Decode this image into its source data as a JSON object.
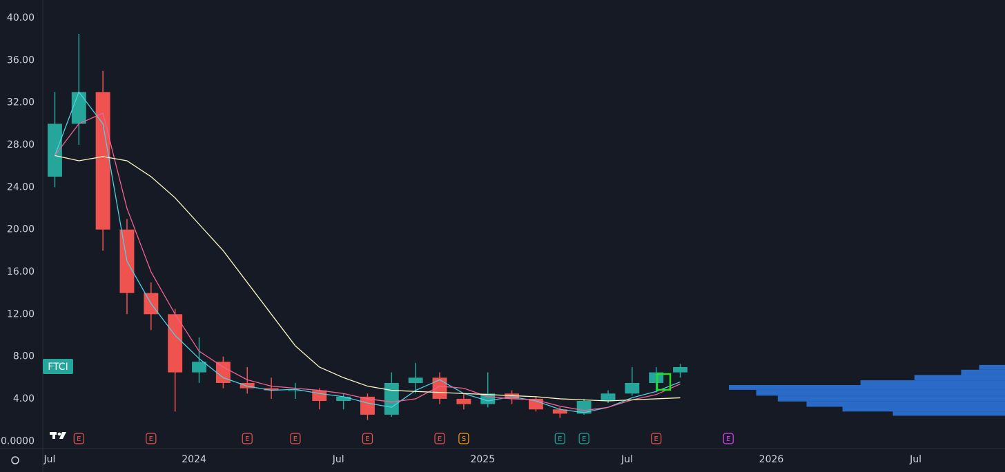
{
  "chart_data": {
    "type": "candlestick",
    "symbol": "FTCI",
    "x": [
      "2023-07",
      "2023-08",
      "2023-09",
      "2023-10",
      "2023-11",
      "2023-12",
      "2024-01",
      "2024-02",
      "2024-03",
      "2024-04",
      "2024-05",
      "2024-06",
      "2024-07",
      "2024-08",
      "2024-09",
      "2024-10",
      "2024-11",
      "2024-12",
      "2025-01",
      "2025-02",
      "2025-03",
      "2025-04",
      "2025-05",
      "2025-06",
      "2025-07",
      "2025-08",
      "2025-09"
    ],
    "open": [
      25,
      30,
      33,
      20,
      14,
      12,
      6.5,
      7.5,
      5.5,
      5,
      4.8,
      4.8,
      3.8,
      4.2,
      2.5,
      5.5,
      6,
      4,
      3.5,
      4.5,
      4,
      3,
      2.6,
      3.8,
      4.5,
      5.5,
      6.5
    ],
    "high": [
      33,
      38.5,
      35,
      21,
      15,
      12.5,
      9.8,
      8,
      7,
      6,
      5.5,
      5,
      4.5,
      4.5,
      6.5,
      7.4,
      6.5,
      4.5,
      6.5,
      4.8,
      4.2,
      3.2,
      4,
      4.8,
      7,
      7,
      7.3
    ],
    "low": [
      24,
      28,
      18,
      12,
      10.5,
      2.8,
      5.5,
      5,
      4.5,
      4,
      4,
      3,
      3,
      2,
      2.3,
      4.5,
      3.5,
      3,
      3.2,
      3.5,
      2.8,
      2.2,
      2.5,
      3.6,
      4.3,
      4.6,
      6
    ],
    "close": [
      30,
      33,
      20,
      14,
      12,
      6.5,
      7.5,
      5.5,
      5,
      4.8,
      4.8,
      3.8,
      4.2,
      2.5,
      5.5,
      6,
      4,
      3.5,
      4.5,
      4,
      3,
      2.6,
      3.8,
      4.5,
      5.5,
      6.5,
      7
    ],
    "up_color": "#26a69a",
    "down_color": "#ef5350",
    "series": [
      {
        "color": "#4dd0e1",
        "values": [
          27,
          33,
          30,
          17,
          13,
          10,
          7.8,
          6,
          5.2,
          4.8,
          4.9,
          4.5,
          4.2,
          3.6,
          3.2,
          4.8,
          5.8,
          4.5,
          3.8,
          4.2,
          3.8,
          3,
          2.7,
          3.2,
          4.1,
          4.7,
          5.6
        ]
      },
      {
        "color": "#f06292",
        "values": [
          27,
          30,
          31,
          22,
          16,
          12,
          8.5,
          7,
          5.8,
          5.2,
          5,
          4.8,
          4.5,
          4,
          3.7,
          4,
          5.2,
          5,
          4.2,
          4,
          3.9,
          3.3,
          2.9,
          3.2,
          3.9,
          4.4,
          5.4
        ]
      },
      {
        "color": "#fff9c4",
        "values": [
          27,
          26.5,
          26.9,
          26.5,
          25,
          23,
          20.5,
          18,
          15,
          12,
          9,
          7,
          6,
          5.2,
          4.8,
          4.7,
          4.6,
          4.5,
          4.4,
          4.3,
          4.2,
          4,
          3.9,
          3.8,
          3.9,
          4,
          4.1
        ]
      }
    ],
    "volume_profile": {
      "color": "#2f7ae5",
      "levels": [
        2.6,
        3.0,
        3.5,
        4.0,
        4.6,
        5.1,
        5.5,
        6.0,
        6.5,
        7.0
      ],
      "values": [
        156,
        226,
        276,
        316,
        346,
        384,
        201,
        126,
        61,
        36
      ]
    },
    "events": [
      {
        "x": "2023-08",
        "label": "E",
        "color": "#ef5350"
      },
      {
        "x": "2023-11",
        "label": "E",
        "color": "#ef5350"
      },
      {
        "x": "2024-03",
        "label": "E",
        "color": "#ef5350"
      },
      {
        "x": "2024-05",
        "label": "E",
        "color": "#ef5350"
      },
      {
        "x": "2024-08",
        "label": "E",
        "color": "#ef5350"
      },
      {
        "x": "2024-11",
        "label": "E",
        "color": "#ef5350"
      },
      {
        "x": "2024-12",
        "label": "S",
        "color": "#ff9800"
      },
      {
        "x": "2025-04",
        "label": "E",
        "color": "#26a69a"
      },
      {
        "x": "2025-05",
        "label": "E",
        "color": "#26a69a"
      },
      {
        "x": "2025-08",
        "label": "E",
        "color": "#ef5350"
      },
      {
        "x": "2025-11",
        "label": "E",
        "color": "#e040fb"
      }
    ],
    "xlim": [
      "2023-07",
      "2026-11"
    ],
    "xticks": [
      {
        "value": "2023-07",
        "label": "Jul"
      },
      {
        "value": "2024-01",
        "label": "2024"
      },
      {
        "value": "2024-07",
        "label": "Jul"
      },
      {
        "value": "2025-01",
        "label": "2025"
      },
      {
        "value": "2025-07",
        "label": "Jul"
      },
      {
        "value": "2026-01",
        "label": "2026"
      },
      {
        "value": "2026-07",
        "label": "Jul"
      }
    ],
    "ylim": [
      -0.7,
      41.7
    ],
    "yticks": [
      {
        "value": 0,
        "label": "0.0000"
      },
      {
        "value": 4,
        "label": "4.00"
      },
      {
        "value": 8,
        "label": "8.00"
      },
      {
        "value": 12,
        "label": "12.00"
      },
      {
        "value": 16,
        "label": "16.00"
      },
      {
        "value": 20,
        "label": "20.00"
      },
      {
        "value": 24,
        "label": "24.00"
      },
      {
        "value": 28,
        "label": "28.00"
      },
      {
        "value": 32,
        "label": "32.00"
      },
      {
        "value": 36,
        "label": "36.00"
      },
      {
        "value": 40,
        "label": "40.00"
      }
    ]
  }
}
